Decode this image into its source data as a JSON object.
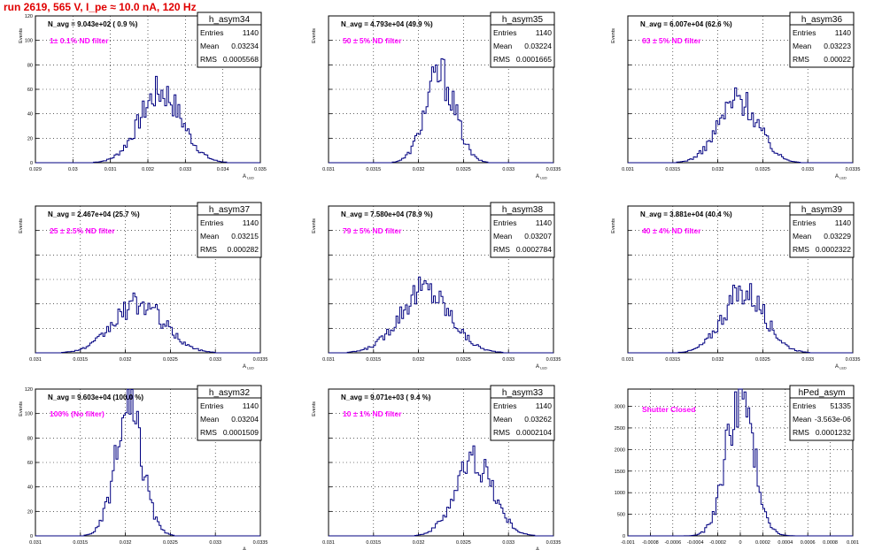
{
  "header": "run 2619,   565 V, I_pe ≈ 10.0 nA, 120 Hz",
  "stats_labels": {
    "entries": "Entries",
    "mean": "Mean",
    "rms": "RMS"
  },
  "colors": {
    "histogram": "#000080",
    "filter_text": "#ff00ff",
    "header": "#e00000",
    "grid": "#000000"
  },
  "chart_data": [
    {
      "type": "bar",
      "name": "h_asym34",
      "stats": {
        "entries": "1140",
        "mean": "0.03234",
        "rms": "0.0005568"
      },
      "nbar_label": "N_avg = 9.043e+02 ( 0.9 %)",
      "filter_label": "1± 0.1% ND filter",
      "ylabel": "Events",
      "xlabel": "A_LED",
      "xlim": [
        0.029,
        0.035
      ],
      "ylim": [
        0,
        120
      ],
      "xticks": [
        "0.029",
        "0.03",
        "0.031",
        "0.032",
        "0.033",
        "0.034",
        "0.035"
      ],
      "yticks": [
        "0",
        "20",
        "40",
        "60",
        "80",
        "100",
        "120"
      ],
      "yticks_visible": true,
      "mean": 0.03234,
      "sigma": 0.00056,
      "peak": 58,
      "grid": true
    },
    {
      "type": "bar",
      "name": "h_asym35",
      "stats": {
        "entries": "1140",
        "mean": "0.03224",
        "rms": "0.0001665"
      },
      "nbar_label": "N_avg = 4.793e+04 (49.9 %)",
      "filter_label": "50 ± 5% ND filter",
      "ylabel": "Events",
      "xlabel": "A_LED",
      "xlim": [
        0.031,
        0.0335
      ],
      "ylim": [
        0,
        120
      ],
      "xticks": [
        "0.031",
        "0.0315",
        "0.032",
        "0.0325",
        "0.033",
        "0.0335"
      ],
      "yticks": [
        "0",
        "20",
        "40",
        "60",
        "80",
        "100",
        "120"
      ],
      "yticks_visible": false,
      "mean": 0.03224,
      "sigma": 0.000166,
      "peak": 72,
      "grid": true
    },
    {
      "type": "bar",
      "name": "h_asym36",
      "stats": {
        "entries": "1140",
        "mean": "0.03223",
        "rms": "0.00022"
      },
      "nbar_label": "N_avg = 6.007e+04 (62.6 %)",
      "filter_label": "63 ± 5% ND filter",
      "ylabel": "Events",
      "xlabel": "A_LED",
      "xlim": [
        0.031,
        0.0335
      ],
      "ylim": [
        0,
        120
      ],
      "xticks": [
        "0.031",
        "0.0315",
        "0.032",
        "0.0325",
        "0.033",
        "0.0335"
      ],
      "yticks": [
        "0",
        "20",
        "40",
        "60",
        "80",
        "100",
        "120"
      ],
      "yticks_visible": false,
      "mean": 0.03223,
      "sigma": 0.00022,
      "peak": 52,
      "grid": true
    },
    {
      "type": "bar",
      "name": "h_asym37",
      "stats": {
        "entries": "1140",
        "mean": "0.03215",
        "rms": "0.000282"
      },
      "nbar_label": "N_avg = 2.467e+04 (25.7 %)",
      "filter_label": "25 ± 2.5% ND filter",
      "ylabel": "Events",
      "xlabel": "A_LED",
      "xlim": [
        0.031,
        0.0335
      ],
      "ylim": [
        0,
        120
      ],
      "xticks": [
        "0.031",
        "0.0315",
        "0.032",
        "0.0325",
        "0.033",
        "0.0335"
      ],
      "yticks": [
        "0",
        "20",
        "40",
        "60",
        "80",
        "100",
        "120"
      ],
      "yticks_visible": false,
      "mean": 0.03215,
      "sigma": 0.000282,
      "peak": 40,
      "grid": true
    },
    {
      "type": "bar",
      "name": "h_asym38",
      "stats": {
        "entries": "1140",
        "mean": "0.03207",
        "rms": "0.0002784"
      },
      "nbar_label": "N_avg = 7.580e+04 (78.9 %)",
      "filter_label": "79 ± 5% ND filter",
      "ylabel": "Events",
      "xlabel": "A_LED",
      "xlim": [
        0.031,
        0.0335
      ],
      "ylim": [
        0,
        120
      ],
      "xticks": [
        "0.031",
        "0.0315",
        "0.032",
        "0.0325",
        "0.033",
        "0.0335"
      ],
      "yticks": [
        "0",
        "20",
        "40",
        "60",
        "80",
        "100",
        "120"
      ],
      "yticks_visible": false,
      "mean": 0.03207,
      "sigma": 0.000278,
      "peak": 52,
      "grid": true
    },
    {
      "type": "bar",
      "name": "h_asym39",
      "stats": {
        "entries": "1140",
        "mean": "0.03229",
        "rms": "0.0002322"
      },
      "nbar_label": "N_avg = 3.881e+04 (40.4 %)",
      "filter_label": "40 ± 4% ND filter",
      "ylabel": "Events",
      "xlabel": "A_LED",
      "xlim": [
        0.031,
        0.0335
      ],
      "ylim": [
        0,
        120
      ],
      "xticks": [
        "0.031",
        "0.0315",
        "0.032",
        "0.0325",
        "0.033",
        "0.0335"
      ],
      "yticks": [
        "0",
        "20",
        "40",
        "60",
        "80",
        "100",
        "120"
      ],
      "yticks_visible": false,
      "mean": 0.03229,
      "sigma": 0.000232,
      "peak": 50,
      "grid": true
    },
    {
      "type": "bar",
      "name": "h_asym32",
      "stats": {
        "entries": "1140",
        "mean": "0.03204",
        "rms": "0.0001509"
      },
      "nbar_label": "N_avg = 9.603e+04 (100.0 %)",
      "filter_label": "100% (No filter)",
      "ylabel": "Events",
      "xlabel": "A_LED",
      "xlim": [
        0.031,
        0.0335
      ],
      "ylim": [
        0,
        120
      ],
      "xticks": [
        "0.031",
        "0.0315",
        "0.032",
        "0.0325",
        "0.033",
        "0.0335"
      ],
      "yticks": [
        "0",
        "20",
        "40",
        "60",
        "80",
        "100",
        "120"
      ],
      "yticks_visible": true,
      "mean": 0.03204,
      "sigma": 0.000151,
      "peak": 100,
      "grid": true
    },
    {
      "type": "bar",
      "name": "h_asym33",
      "stats": {
        "entries": "1140",
        "mean": "0.03262",
        "rms": "0.0002104"
      },
      "nbar_label": "N_avg = 9.071e+03 ( 9.4 %)",
      "filter_label": "10 ± 1% ND filter",
      "ylabel": "Events",
      "xlabel": "A_LED",
      "xlim": [
        0.031,
        0.0335
      ],
      "ylim": [
        0,
        120
      ],
      "xticks": [
        "0.031",
        "0.0315",
        "0.032",
        "0.0325",
        "0.033",
        "0.0335"
      ],
      "yticks": [
        "0",
        "20",
        "40",
        "60",
        "80",
        "100",
        "120"
      ],
      "yticks_visible": false,
      "mean": 0.03262,
      "sigma": 0.00021,
      "peak": 62,
      "grid": true
    },
    {
      "type": "bar",
      "name": "hPed_asym",
      "stats": {
        "entries": "51335",
        "mean": "-3.563e-06",
        "rms": "0.0001232"
      },
      "nbar_label": "",
      "filter_label": "Shutter Closed",
      "ylabel": "",
      "xlabel": "",
      "xlim": [
        -0.001,
        0.001
      ],
      "ylim": [
        0,
        3400
      ],
      "xticks": [
        "-0.001",
        "-0.0008",
        "-0.0006",
        "-0.0004",
        "-0.0002",
        "0",
        "0.0002",
        "0.0004",
        "0.0006",
        "0.0008",
        "0.001"
      ],
      "yticks": [
        "0",
        "500",
        "1000",
        "1500",
        "2000",
        "2500",
        "3000"
      ],
      "yticks_visible": true,
      "mean": -3.6e-06,
      "sigma": 0.000123,
      "peak": 3250,
      "grid": true
    }
  ]
}
